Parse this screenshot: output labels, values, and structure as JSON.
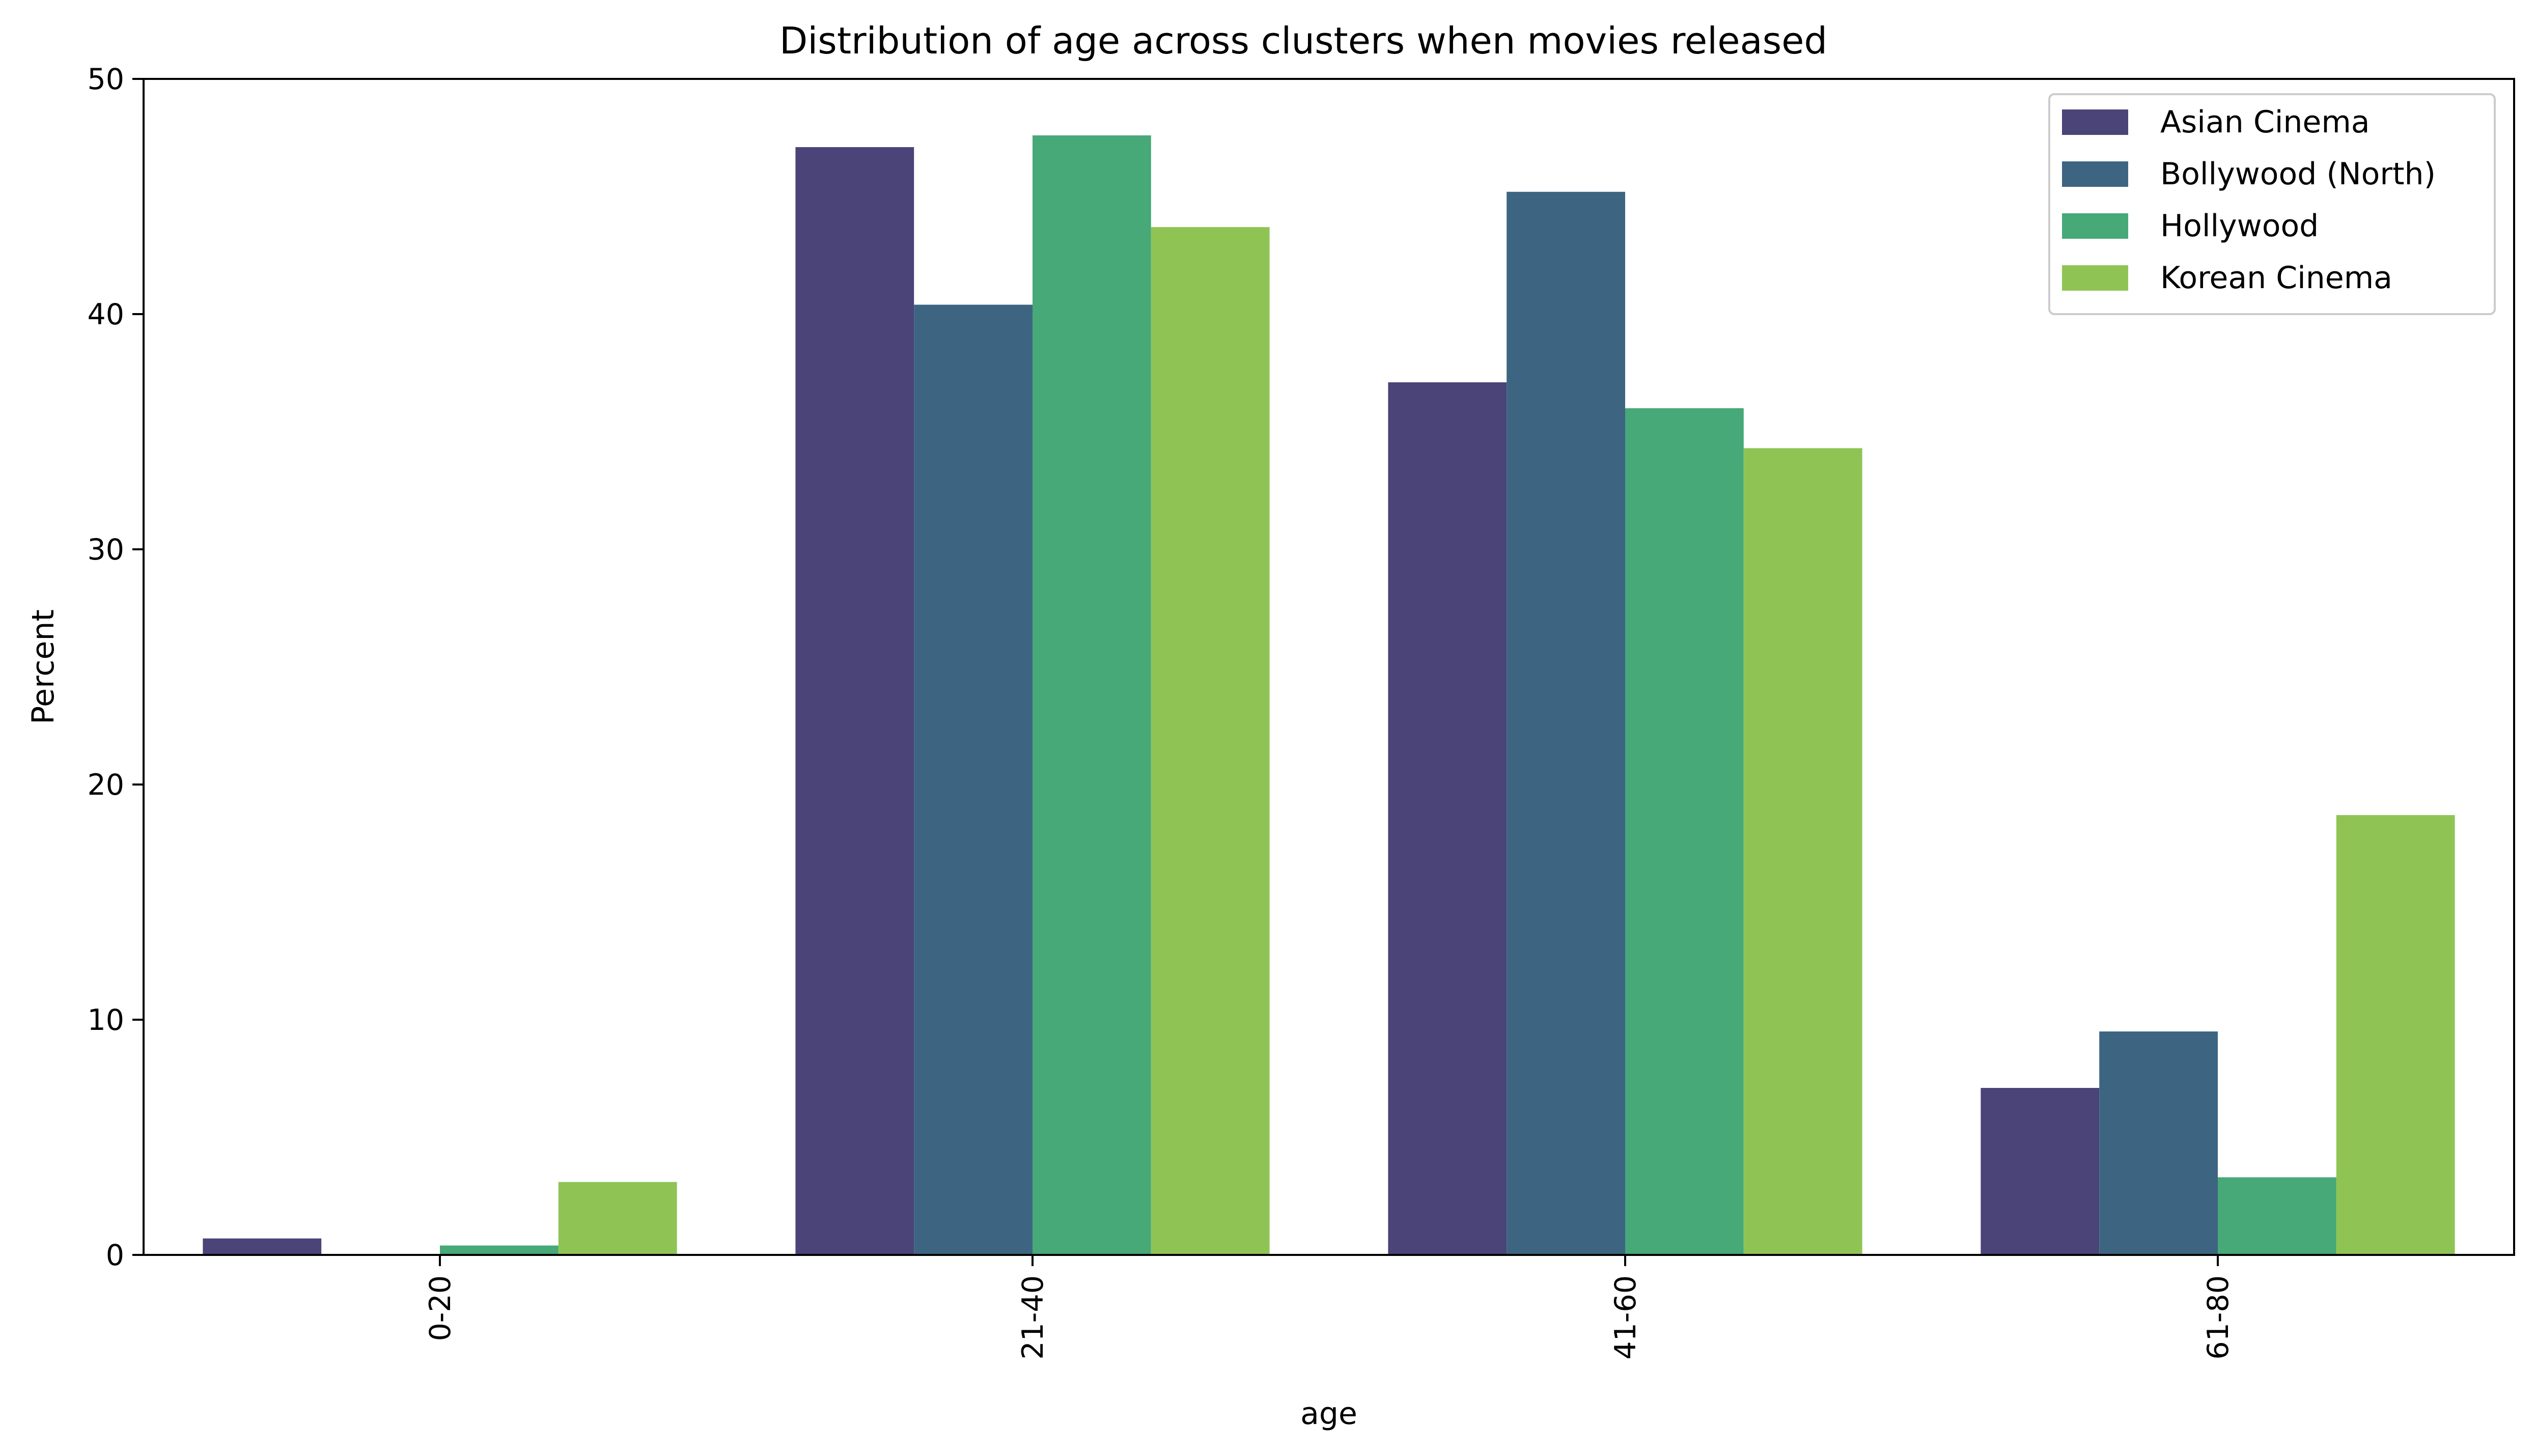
{
  "chart_data": {
    "type": "bar",
    "title": "Distribution of age across clusters when movies released",
    "xlabel": "age",
    "ylabel": "Percent",
    "categories": [
      "0-20",
      "21-40",
      "41-60",
      "61-80"
    ],
    "series": [
      {
        "name": "Asian Cinema",
        "color": "#4a4478",
        "values": [
          0.7,
          47.1,
          37.1,
          7.1
        ]
      },
      {
        "name": "Bollywood (North)",
        "color": "#3d6582",
        "values": [
          0.0,
          40.4,
          45.2,
          9.5
        ]
      },
      {
        "name": "Hollywood",
        "color": "#47a878",
        "values": [
          0.4,
          47.6,
          36.0,
          3.3
        ]
      },
      {
        "name": "Korean Cinema",
        "color": "#8fc455",
        "values": [
          3.1,
          43.7,
          34.3,
          18.7
        ]
      }
    ],
    "ylim": [
      0,
      50
    ],
    "yticks": [
      0,
      10,
      20,
      30,
      40,
      50
    ],
    "grid": false,
    "legend_position": "top-right"
  }
}
